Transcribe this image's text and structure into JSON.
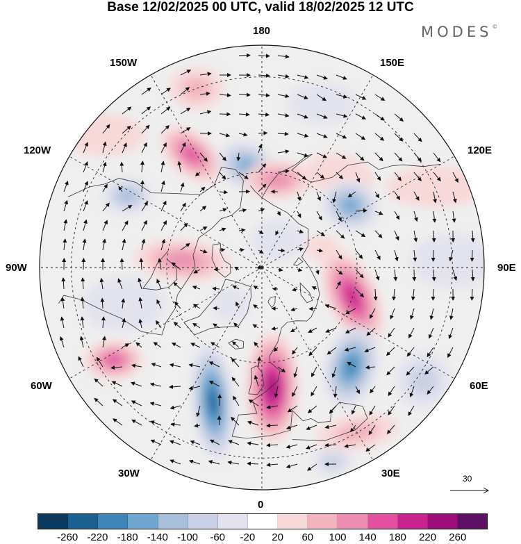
{
  "title": "Base 12/02/2025 00 UTC, valid 18/02/2025 12 UTC",
  "brand": "MODES",
  "brand_mark": "©",
  "lon_labels": {
    "top": "180",
    "bottom": "0",
    "left": "90W",
    "right": "90E",
    "tl1": "150W",
    "tl2": "120W",
    "tr1": "150E",
    "tr2": "120E",
    "bl1": "60W",
    "bl2": "30W",
    "br1": "60E",
    "br2": "30E"
  },
  "reference_vector": {
    "label": "30"
  },
  "colorbar": {
    "colors": [
      "#0b3a5e",
      "#1a6192",
      "#3f85b8",
      "#6ea6cf",
      "#a8bfdc",
      "#c9cfe4",
      "#e2e2ee",
      "#ffffff",
      "#f8d7d8",
      "#f2b3be",
      "#ec8db2",
      "#e2509f",
      "#c7238c",
      "#9c0f79",
      "#5e1064"
    ],
    "ticks": [
      "-260",
      "-220",
      "-180",
      "-140",
      "-100",
      "-60",
      "-20",
      "20",
      "60",
      "100",
      "140",
      "180",
      "220",
      "260"
    ]
  },
  "anomalies": [
    {
      "lon": -148,
      "lat": 48,
      "v": 150,
      "rx": 52,
      "ry": 30,
      "rot": 40
    },
    {
      "lon": -172,
      "lat": 58,
      "v": -150,
      "rx": 45,
      "ry": 34,
      "rot": 30
    },
    {
      "lon": 170,
      "lat": 62,
      "v": 120,
      "rx": 50,
      "ry": 28,
      "rot": 0
    },
    {
      "lon": 140,
      "lat": 52,
      "v": 40,
      "rx": 50,
      "ry": 30,
      "rot": 10
    },
    {
      "lon": 125,
      "lat": 56,
      "v": -140,
      "rx": 42,
      "ry": 36,
      "rot": 20
    },
    {
      "lon": 108,
      "lat": 70,
      "v": 40,
      "rx": 25,
      "ry": 18,
      "rot": 0
    },
    {
      "lon": 72,
      "lat": 60,
      "v": 190,
      "rx": 36,
      "ry": 72,
      "rot": -25
    },
    {
      "lon": -118,
      "lat": 42,
      "v": -120,
      "rx": 36,
      "ry": 26,
      "rot": 0
    },
    {
      "lon": -95,
      "lat": 65,
      "v": 110,
      "rx": 70,
      "ry": 30,
      "rot": 5
    },
    {
      "lon": -58,
      "lat": 35,
      "v": 150,
      "rx": 42,
      "ry": 28,
      "rot": 0
    },
    {
      "lon": -20,
      "lat": 45,
      "v": -250,
      "rx": 30,
      "ry": 85,
      "rot": -5
    },
    {
      "lon": 5,
      "lat": 52,
      "v": 250,
      "rx": 38,
      "ry": 80,
      "rot": 0
    },
    {
      "lon": 42,
      "lat": 48,
      "v": -180,
      "rx": 38,
      "ry": 60,
      "rot": 15
    },
    {
      "lon": 30,
      "lat": 30,
      "v": 80,
      "rx": 60,
      "ry": 25,
      "rot": -10
    },
    {
      "lon": 20,
      "lat": 25,
      "v": -80,
      "rx": 30,
      "ry": 20,
      "rot": 0
    },
    {
      "lon": -130,
      "lat": 25,
      "v": 50,
      "rx": 60,
      "ry": 30,
      "rot": 0
    },
    {
      "lon": 115,
      "lat": 30,
      "v": 40,
      "rx": 70,
      "ry": 30,
      "rot": 0
    },
    {
      "lon": 92,
      "lat": 30,
      "v": -50,
      "rx": 60,
      "ry": 40,
      "rot": 0
    },
    {
      "lon": 55,
      "lat": 28,
      "v": -60,
      "rx": 40,
      "ry": 40,
      "rot": 0
    },
    {
      "lon": -75,
      "lat": 45,
      "v": -40,
      "rx": 60,
      "ry": 40,
      "rot": 0
    },
    {
      "lon": 160,
      "lat": 35,
      "v": -40,
      "rx": 50,
      "ry": 30,
      "rot": 0
    },
    {
      "lon": -160,
      "lat": 30,
      "v": 60,
      "rx": 40,
      "ry": 30,
      "rot": 0
    },
    {
      "lon": 150,
      "lat": 80,
      "v": -30,
      "rx": 40,
      "ry": 30,
      "rot": 0
    },
    {
      "lon": -40,
      "lat": 75,
      "v": -30,
      "rx": 30,
      "ry": 25,
      "rot": 0
    }
  ]
}
